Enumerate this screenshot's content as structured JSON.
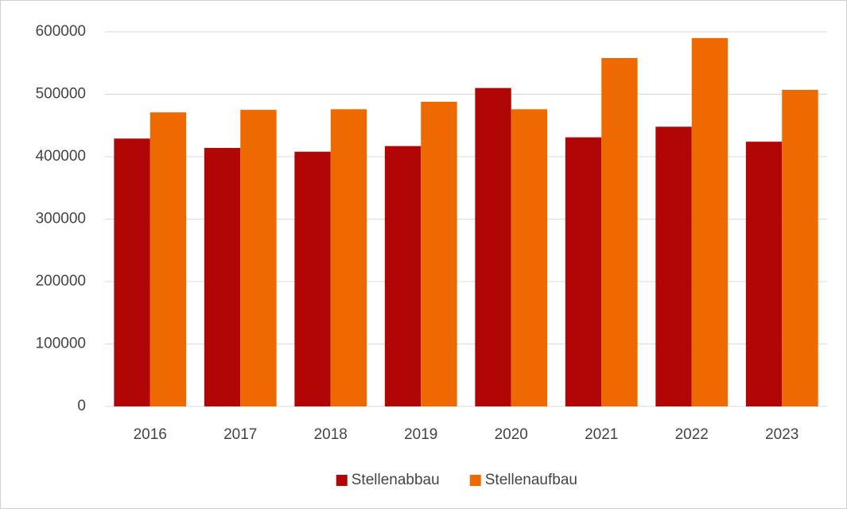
{
  "chart_data": {
    "type": "bar",
    "categories": [
      "2016",
      "2017",
      "2018",
      "2019",
      "2020",
      "2021",
      "2022",
      "2023"
    ],
    "series": [
      {
        "name": "Stellenabbau",
        "color": "#b20606",
        "values": [
          429000,
          414000,
          408000,
          417000,
          510000,
          431000,
          448000,
          424000
        ]
      },
      {
        "name": "Stellenaufbau",
        "color": "#ee6a00",
        "values": [
          471000,
          475000,
          476000,
          488000,
          476000,
          558000,
          590000,
          507000
        ]
      }
    ],
    "ylim": [
      0,
      600000
    ],
    "yticks": [
      0,
      100000,
      200000,
      300000,
      400000,
      500000,
      600000
    ],
    "grid": true,
    "legend": "bottom"
  }
}
